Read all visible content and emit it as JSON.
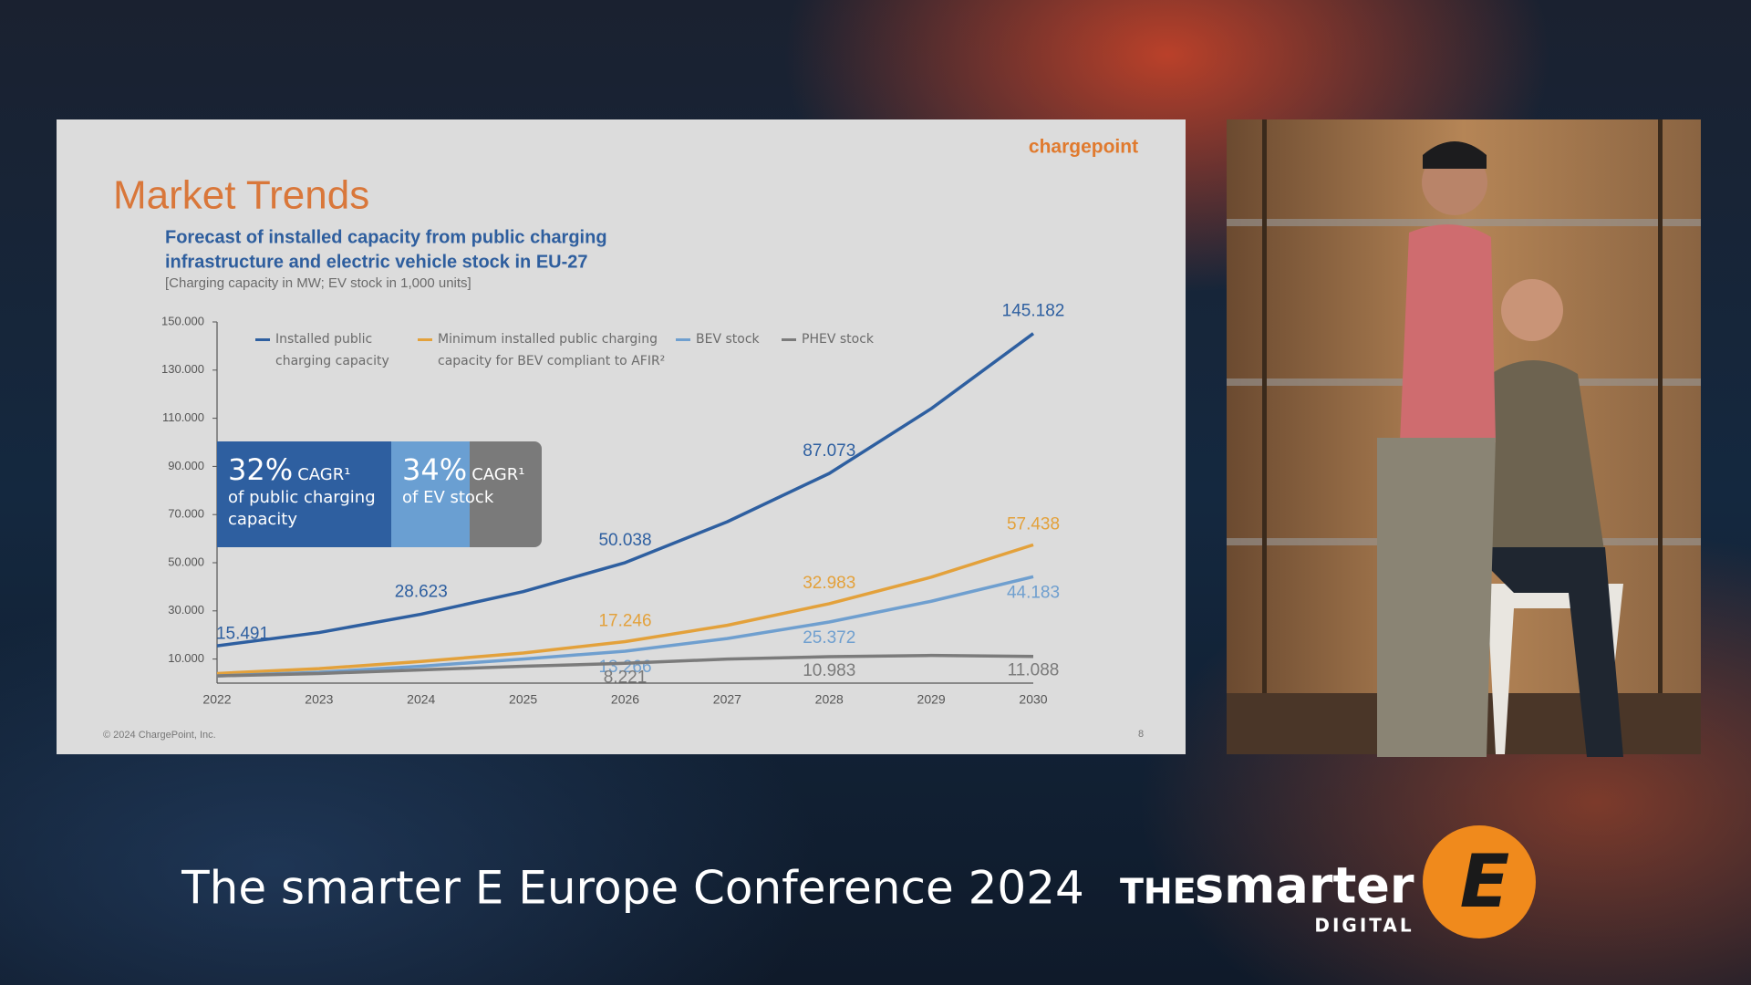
{
  "slide": {
    "title": "Market Trends",
    "logo": "chargepoint",
    "subtitle_lines": [
      "Forecast of installed capacity from public charging",
      "infrastructure and electric vehicle stock in EU-27"
    ],
    "note": "[Charging capacity in MW; EV stock in 1,000 units]",
    "footer": "© 2024 ChargePoint, Inc.",
    "page_number": "8",
    "cagr_boxes": [
      {
        "percent": "32%",
        "label": "CAGR¹",
        "text": "of public charging capacity"
      },
      {
        "percent": "34%",
        "label": "CAGR¹",
        "text": "of EV stock"
      }
    ]
  },
  "chart_data": {
    "type": "line",
    "categories": [
      "2022",
      "2023",
      "2024",
      "2025",
      "2026",
      "2027",
      "2028",
      "2029",
      "2030"
    ],
    "series": [
      {
        "name": "Installed public charging capacity",
        "color": "#2e5fa0",
        "values": [
          15491,
          21000,
          28623,
          38000,
          50038,
          67000,
          87073,
          114000,
          145182
        ],
        "value_labels": [
          "15.491",
          null,
          "28.623",
          null,
          "50.038",
          null,
          "87.073",
          null,
          "145.182"
        ]
      },
      {
        "name": "Minimum installed public charging capacity for BEV compliant to AFIR²",
        "color": "#e3a13b",
        "values": [
          4000,
          6000,
          9000,
          12500,
          17246,
          24000,
          32983,
          44000,
          57438
        ],
        "value_labels": [
          null,
          null,
          null,
          null,
          "17.246",
          null,
          "32.983",
          null,
          "57.438"
        ]
      },
      {
        "name": "BEV stock",
        "color": "#6f9fcf",
        "values": [
          3000,
          4500,
          7000,
          10000,
          13266,
          18500,
          25372,
          34000,
          44183
        ],
        "value_labels": [
          null,
          null,
          null,
          null,
          "13.266",
          null,
          "25.372",
          null,
          "44.183"
        ]
      },
      {
        "name": "PHEV stock",
        "color": "#7b7b7b",
        "values": [
          3000,
          4000,
          5500,
          7000,
          8221,
          10000,
          10983,
          11500,
          11088
        ],
        "value_labels": [
          null,
          null,
          null,
          null,
          "8.221",
          null,
          "10.983",
          null,
          "11.088"
        ]
      }
    ],
    "ylim": [
      0,
      150000
    ],
    "yticks": [
      {
        "value": 10000,
        "label": "10.000"
      },
      {
        "value": 30000,
        "label": "30.000"
      },
      {
        "value": 50000,
        "label": "50.000"
      },
      {
        "value": 70000,
        "label": "70.000"
      },
      {
        "value": 90000,
        "label": "90.000"
      },
      {
        "value": 110000,
        "label": "110.000"
      },
      {
        "value": 130000,
        "label": "130.000"
      },
      {
        "value": 150000,
        "label": "150.000"
      }
    ],
    "legend": "top"
  },
  "banner": {
    "conference": "The smarter E Europe Conference 2024",
    "logo_the": "THE",
    "logo_smarter": "smarter",
    "logo_digital": "DIGITAL",
    "logo_e": "E"
  }
}
